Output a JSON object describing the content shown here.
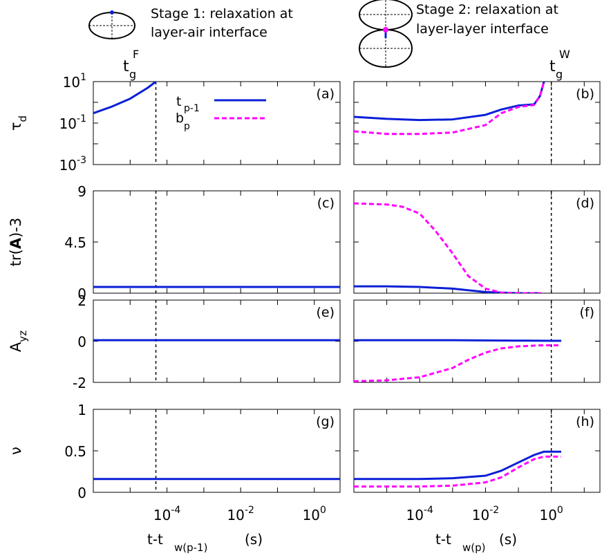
{
  "header": {
    "stage1_line1": "Stage 1: relaxation at",
    "stage1_line2": "layer-air interface",
    "stage2_line1": "Stage 2: relaxation at",
    "stage2_line2": "layer-layer interface",
    "tgF_main": "t",
    "tgF_sub": "g",
    "tgF_sup": "F",
    "tgW_main": "t",
    "tgW_sub": "g",
    "tgW_sup": "W"
  },
  "colors": {
    "tp1": "#0a1fd6",
    "bp": "#ff00ff",
    "dashed_marker": "#000000"
  },
  "legend": {
    "tp1_main": "t",
    "tp1_sub": "p-1",
    "bp_main": "b",
    "bp_sub": "p"
  },
  "xaxis": {
    "left_label_main": "t-t",
    "left_label_sub": "w(p-1)",
    "left_label_unit": "(s)",
    "right_label_main": "t-t",
    "right_label_sub": "w(p)",
    "right_label_unit": "(s)",
    "left_ticks": [
      {
        "base": "10",
        "exp": "-4",
        "value": 0.0001
      },
      {
        "base": "10",
        "exp": "-2",
        "value": 0.01
      },
      {
        "base": "10",
        "exp": "0",
        "value": 1
      }
    ],
    "right_ticks": [
      {
        "base": "10",
        "exp": "-4",
        "value": 0.0001
      },
      {
        "base": "10",
        "exp": "-2",
        "value": 0.01
      },
      {
        "base": "10",
        "exp": "0",
        "value": 1
      }
    ]
  },
  "rows": [
    {
      "ylabel_main": "τ",
      "ylabel_sub": "d",
      "ylabel_prefix": "",
      "ylabel_suffix": "",
      "ticks": [
        {
          "base": "10",
          "exp": "1"
        },
        {
          "base": "10",
          "exp": "-1"
        },
        {
          "base": "10",
          "exp": "-3"
        }
      ]
    },
    {
      "ylabel_main": "tr(",
      "ylabel_sub": "",
      "ylabel_bold": "A",
      "ylabel_suffix": ")-3",
      "ticks": [
        {
          "base": "9",
          "exp": ""
        },
        {
          "base": "4.5",
          "exp": ""
        },
        {
          "base": "0",
          "exp": ""
        }
      ]
    },
    {
      "ylabel_main": "A",
      "ylabel_sub": "yz",
      "ylabel_prefix": "",
      "ylabel_suffix": "",
      "ticks": [
        {
          "base": "2",
          "exp": ""
        },
        {
          "base": "0",
          "exp": ""
        },
        {
          "base": "-2",
          "exp": ""
        }
      ]
    },
    {
      "ylabel_main": "ν",
      "ylabel_sub": "",
      "ylabel_prefix": "",
      "ylabel_suffix": "",
      "ticks": [
        {
          "base": "1",
          "exp": ""
        },
        {
          "base": "0.5",
          "exp": ""
        },
        {
          "base": "0",
          "exp": ""
        }
      ]
    }
  ],
  "panel_labels": [
    "(a)",
    "(b)",
    "(c)",
    "(d)",
    "(e)",
    "(f)",
    "(g)",
    "(h)"
  ],
  "chart_data": [
    {
      "panel": "(a)",
      "type": "line",
      "xscale": "log",
      "yscale": "log",
      "xlim": [
        1e-06,
        5
      ],
      "ylim": [
        0.001,
        10
      ],
      "marker_x": 5e-05,
      "series": [
        {
          "name": "t_p-1",
          "x": [
            1e-06,
            3e-06,
            1e-05,
            3e-05,
            5e-05
          ],
          "y": [
            0.3,
            0.6,
            1.5,
            5,
            10
          ]
        }
      ]
    },
    {
      "panel": "(b)",
      "type": "line",
      "xscale": "log",
      "yscale": "log",
      "xlim": [
        1e-06,
        30
      ],
      "ylim": [
        0.001,
        10
      ],
      "marker_x": 1,
      "series": [
        {
          "name": "t_p-1",
          "x": [
            1e-06,
            1e-05,
            0.0001,
            0.001,
            0.01,
            0.03,
            0.1,
            0.3,
            0.45,
            0.6
          ],
          "y": [
            0.2,
            0.16,
            0.14,
            0.15,
            0.25,
            0.45,
            0.7,
            0.8,
            2,
            10
          ]
        },
        {
          "name": "b_p",
          "x": [
            1e-06,
            1e-05,
            0.0001,
            0.001,
            0.01,
            0.03,
            0.1,
            0.3,
            0.45,
            0.6
          ],
          "y": [
            0.04,
            0.03,
            0.03,
            0.035,
            0.08,
            0.3,
            0.6,
            0.75,
            2,
            10
          ]
        }
      ]
    },
    {
      "panel": "(c)",
      "type": "line",
      "xscale": "log",
      "xlim": [
        1e-06,
        5
      ],
      "ylim": [
        0,
        9
      ],
      "marker_x": 5e-05,
      "series": [
        {
          "name": "t_p-1",
          "x": [
            1e-06,
            5
          ],
          "y": [
            0.55,
            0.55
          ]
        }
      ]
    },
    {
      "panel": "(d)",
      "type": "line",
      "xscale": "log",
      "xlim": [
        1e-06,
        30
      ],
      "ylim": [
        0,
        9
      ],
      "marker_x": 1,
      "series": [
        {
          "name": "t_p-1",
          "x": [
            1e-06,
            1e-05,
            0.0001,
            0.001,
            0.01,
            0.1,
            0.5
          ],
          "y": [
            0.6,
            0.6,
            0.55,
            0.4,
            0.1,
            0,
            0
          ]
        },
        {
          "name": "b_p",
          "x": [
            1e-06,
            1e-05,
            3e-05,
            0.0001,
            0.0003,
            0.001,
            0.003,
            0.01,
            0.03,
            0.1,
            0.5
          ],
          "y": [
            7.9,
            7.8,
            7.6,
            7.0,
            5.5,
            3.5,
            1.5,
            0.4,
            0.05,
            0,
            0
          ]
        }
      ]
    },
    {
      "panel": "(e)",
      "type": "line",
      "xscale": "log",
      "xlim": [
        1e-06,
        5
      ],
      "ylim": [
        -2,
        2
      ],
      "marker_x": 5e-05,
      "series": [
        {
          "name": "t_p-1",
          "x": [
            1e-06,
            5
          ],
          "y": [
            0.05,
            0.05
          ]
        }
      ]
    },
    {
      "panel": "(f)",
      "type": "line",
      "xscale": "log",
      "xlim": [
        1e-06,
        30
      ],
      "ylim": [
        -2,
        2
      ],
      "marker_x": 1,
      "series": [
        {
          "name": "t_p-1",
          "x": [
            1e-06,
            0.001,
            0.1,
            1,
            2
          ],
          "y": [
            0.05,
            0.05,
            0.03,
            0.02,
            0.02
          ]
        },
        {
          "name": "b_p",
          "x": [
            1e-06,
            1e-05,
            0.0001,
            0.001,
            0.003,
            0.01,
            0.03,
            0.1,
            0.5,
            2
          ],
          "y": [
            -1.95,
            -1.9,
            -1.75,
            -1.3,
            -0.9,
            -0.55,
            -0.35,
            -0.25,
            -0.2,
            -0.2
          ]
        }
      ]
    },
    {
      "panel": "(g)",
      "type": "line",
      "xscale": "log",
      "xlim": [
        1e-06,
        5
      ],
      "ylim": [
        0,
        1
      ],
      "marker_x": 5e-05,
      "series": [
        {
          "name": "t_p-1",
          "x": [
            1e-06,
            5
          ],
          "y": [
            0.16,
            0.16
          ]
        }
      ]
    },
    {
      "panel": "(h)",
      "type": "line",
      "xscale": "log",
      "xlim": [
        1e-06,
        30
      ],
      "ylim": [
        0,
        1
      ],
      "marker_x": 1,
      "series": [
        {
          "name": "t_p-1",
          "x": [
            1e-06,
            0.0001,
            0.001,
            0.01,
            0.03,
            0.1,
            0.3,
            0.6,
            2
          ],
          "y": [
            0.16,
            0.16,
            0.17,
            0.2,
            0.26,
            0.36,
            0.45,
            0.49,
            0.49
          ]
        },
        {
          "name": "b_p",
          "x": [
            1e-06,
            0.0001,
            0.001,
            0.01,
            0.03,
            0.1,
            0.3,
            0.6,
            2
          ],
          "y": [
            0.07,
            0.07,
            0.08,
            0.12,
            0.18,
            0.3,
            0.4,
            0.43,
            0.43
          ]
        }
      ]
    }
  ]
}
